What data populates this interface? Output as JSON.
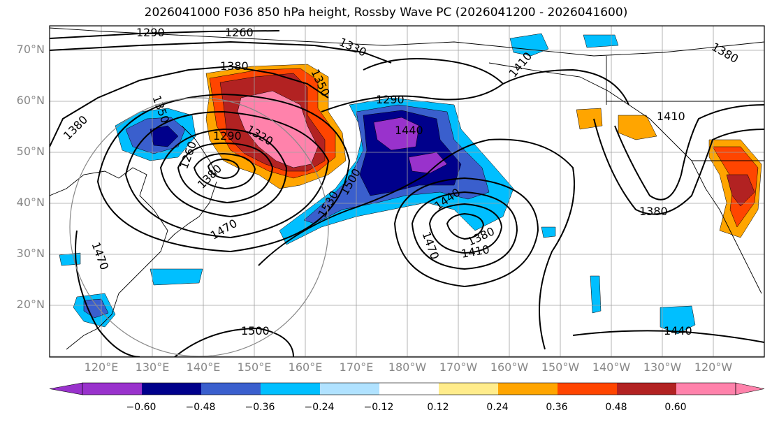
{
  "title": "2026041000 F036 850 hPa height, Rossby Wave PC (2026041200 - 2026041600)",
  "latitude_labels": [
    "70°N",
    "60°N",
    "50°N",
    "40°N",
    "30°N",
    "20°N"
  ],
  "longitude_labels": [
    "120°E",
    "130°E",
    "140°E",
    "150°E",
    "160°E",
    "170°E",
    "180°W",
    "170°W",
    "160°W",
    "150°W",
    "140°W",
    "130°W",
    "120°W"
  ],
  "contour_labels": [
    "1290",
    "1260",
    "1330",
    "1380",
    "1380",
    "1410",
    "1350",
    "1410",
    "1290",
    "1380",
    "1350",
    "1440",
    "1320",
    "1290",
    "1260",
    "1500",
    "1530",
    "1440",
    "1470",
    "1380",
    "1410",
    "1380",
    "1470",
    "1500",
    "1440",
    "1380",
    "1470"
  ],
  "colorbar": {
    "ticks": [
      "−0.60",
      "−0.48",
      "−0.36",
      "−0.24",
      "−0.12",
      "0.12",
      "0.24",
      "0.36",
      "0.48",
      "0.60"
    ],
    "colors": [
      "#9932cc",
      "#00008b",
      "#3a5fcd",
      "#00bfff",
      "#b0e2ff",
      "#ffffff",
      "#ffec8b",
      "#ffa500",
      "#ff4500",
      "#b22222",
      "#ff82ab"
    ]
  },
  "colors": {
    "purple": "#9932cc",
    "navy": "#00008b",
    "royal": "#3a5fcd",
    "sky": "#00bfff",
    "pale_sky": "#b0e2ff",
    "light_yellow": "#ffec8b",
    "orange": "#ffa500",
    "red_orange": "#ff4500",
    "firebrick": "#b22222",
    "pink": "#ff82ab",
    "contour": "#000000",
    "grid": "#a0a0a0",
    "axis_label": "#888888"
  }
}
